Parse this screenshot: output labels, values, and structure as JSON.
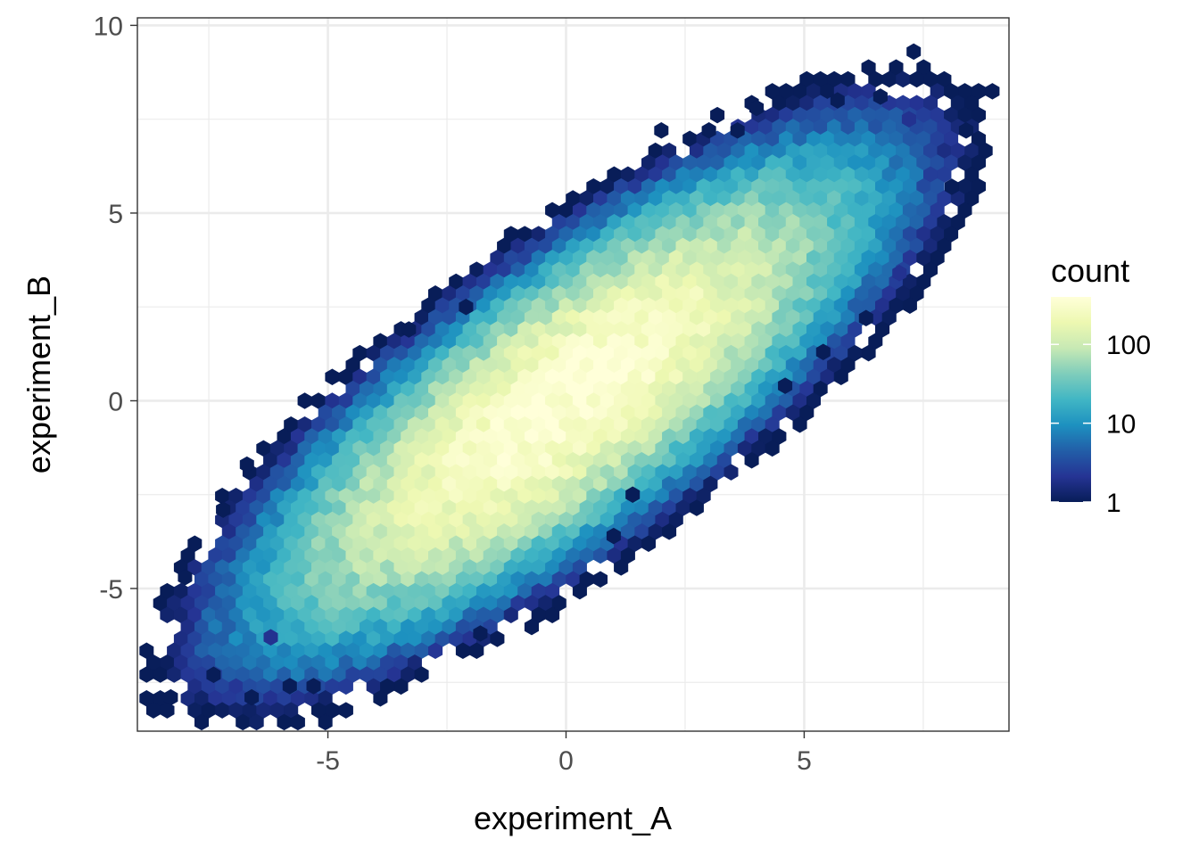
{
  "chart_data": {
    "type": "hexbin",
    "xlabel": "experiment_A",
    "ylabel": "experiment_B",
    "xlim": [
      -9.0,
      9.3
    ],
    "ylim": [
      -8.8,
      10.2
    ],
    "x_ticks": [
      -5,
      0,
      5
    ],
    "y_ticks": [
      -5,
      0,
      5,
      10
    ],
    "grid": true,
    "legend": {
      "title": "count",
      "placement": "right",
      "scale": "log10",
      "range": [
        1,
        400
      ],
      "breaks": [
        1,
        10,
        100
      ],
      "colors": [
        "#081d58",
        "#253494",
        "#225ea8",
        "#1d91c0",
        "#41b6c4",
        "#7fcdbb",
        "#c7e9b4",
        "#edf8b1",
        "#ffffd9"
      ]
    },
    "distribution": {
      "center": [
        0.0,
        0.0
      ],
      "sd_x": 2.5,
      "sd_y": 2.5,
      "correlation": 0.8,
      "peak_count": 400
    },
    "outlier_bins": [
      {
        "x": 7.3,
        "y": 9.3,
        "count": 1
      },
      {
        "x": 8.4,
        "y": 7.2,
        "count": 1
      },
      {
        "x": 4.0,
        "y": 7.8,
        "count": 1
      },
      {
        "x": 2.0,
        "y": 7.2,
        "count": 1
      },
      {
        "x": 3.0,
        "y": 7.2,
        "count": 1
      },
      {
        "x": 3.6,
        "y": 7.2,
        "count": 1
      },
      {
        "x": 5.7,
        "y": 8.0,
        "count": 1
      },
      {
        "x": 6.6,
        "y": 8.1,
        "count": 1
      },
      {
        "x": 7.2,
        "y": 7.5,
        "count": 2
      },
      {
        "x": 8.1,
        "y": 5.7,
        "count": 1
      },
      {
        "x": 7.0,
        "y": 3.4,
        "count": 2
      },
      {
        "x": 6.3,
        "y": 2.2,
        "count": 1
      },
      {
        "x": 5.4,
        "y": 1.3,
        "count": 1
      },
      {
        "x": 4.6,
        "y": 0.4,
        "count": 1
      },
      {
        "x": -6.7,
        "y": -1.7,
        "count": 1
      },
      {
        "x": -7.2,
        "y": -2.9,
        "count": 1
      },
      {
        "x": -8.0,
        "y": -4.7,
        "count": 1
      },
      {
        "x": -8.3,
        "y": -7.9,
        "count": 1
      },
      {
        "x": -6.6,
        "y": -7.9,
        "count": 1
      },
      {
        "x": -7.4,
        "y": -7.3,
        "count": 1
      },
      {
        "x": -6.2,
        "y": -6.3,
        "count": 2
      },
      {
        "x": -5.8,
        "y": -7.6,
        "count": 1
      },
      {
        "x": -5.3,
        "y": -7.6,
        "count": 1
      },
      {
        "x": -1.8,
        "y": -6.2,
        "count": 1
      },
      {
        "x": 1.4,
        "y": -2.5,
        "count": 1
      },
      {
        "x": 1.0,
        "y": -3.6,
        "count": 1
      },
      {
        "x": -3.3,
        "y": 1.9,
        "count": 1
      },
      {
        "x": -2.1,
        "y": 2.5,
        "count": 1
      }
    ]
  }
}
